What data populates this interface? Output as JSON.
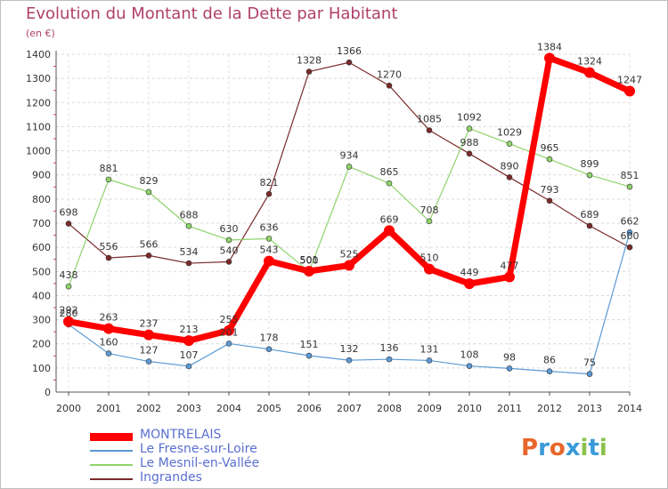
{
  "header": {
    "title": "Evolution du Montant de la Dette par Habitant",
    "unit": "(en €)"
  },
  "brand": {
    "name": "Proxiti",
    "letters": [
      "P",
      "r",
      "o",
      "x",
      "i",
      "t",
      "i"
    ],
    "colors": [
      "#e8662a",
      "#3a9ad9",
      "#e8662a",
      "#3a9ad9",
      "#8ac24a",
      "#3a9ad9",
      "#8ac24a"
    ]
  },
  "chart_data": {
    "type": "line",
    "title": "Evolution du Montant de la Dette par Habitant",
    "ylabel": "(en €)",
    "xlabel": "",
    "categories": [
      "2000",
      "2001",
      "2002",
      "2003",
      "2004",
      "2005",
      "2006",
      "2007",
      "2008",
      "2009",
      "2010",
      "2011",
      "2012",
      "2013",
      "2014"
    ],
    "ylim": [
      0,
      1400
    ],
    "yticks": [
      0,
      100,
      200,
      300,
      400,
      500,
      600,
      700,
      800,
      900,
      1000,
      1100,
      1200,
      1300,
      1400
    ],
    "grid": true,
    "legend": "bottom-left",
    "series": [
      {
        "name": "Ingrandes",
        "color": "#7a2a2a",
        "width": 1.2,
        "marker": 3,
        "values": [
          698,
          556,
          566,
          534,
          540,
          821,
          1328,
          1366,
          1270,
          1085,
          988,
          890,
          793,
          689,
          600
        ]
      },
      {
        "name": "Le Mesnil-en-Vallée",
        "color": "#8ed46b",
        "width": 1.2,
        "marker": 3,
        "values": [
          438,
          881,
          829,
          688,
          630,
          636,
          500,
          934,
          865,
          708,
          1092,
          1029,
          965,
          899,
          851
        ]
      },
      {
        "name": "Le Fresne-sur-Loire",
        "color": "#5b9ad6",
        "width": 1.2,
        "marker": 3,
        "values": [
          280,
          160,
          127,
          107,
          201,
          178,
          151,
          132,
          136,
          131,
          108,
          98,
          86,
          75,
          662
        ]
      },
      {
        "name": "MONTRELAIS",
        "color": "#ff0000",
        "width": 7,
        "marker": 6,
        "values": [
          292,
          263,
          237,
          213,
          255,
          543,
          501,
          525,
          669,
          510,
          449,
          477,
          1384,
          1324,
          1247
        ]
      }
    ],
    "legend_order": [
      "MONTRELAIS",
      "Le Fresne-sur-Loire",
      "Le Mesnil-en-Vallée",
      "Ingrandes"
    ]
  }
}
